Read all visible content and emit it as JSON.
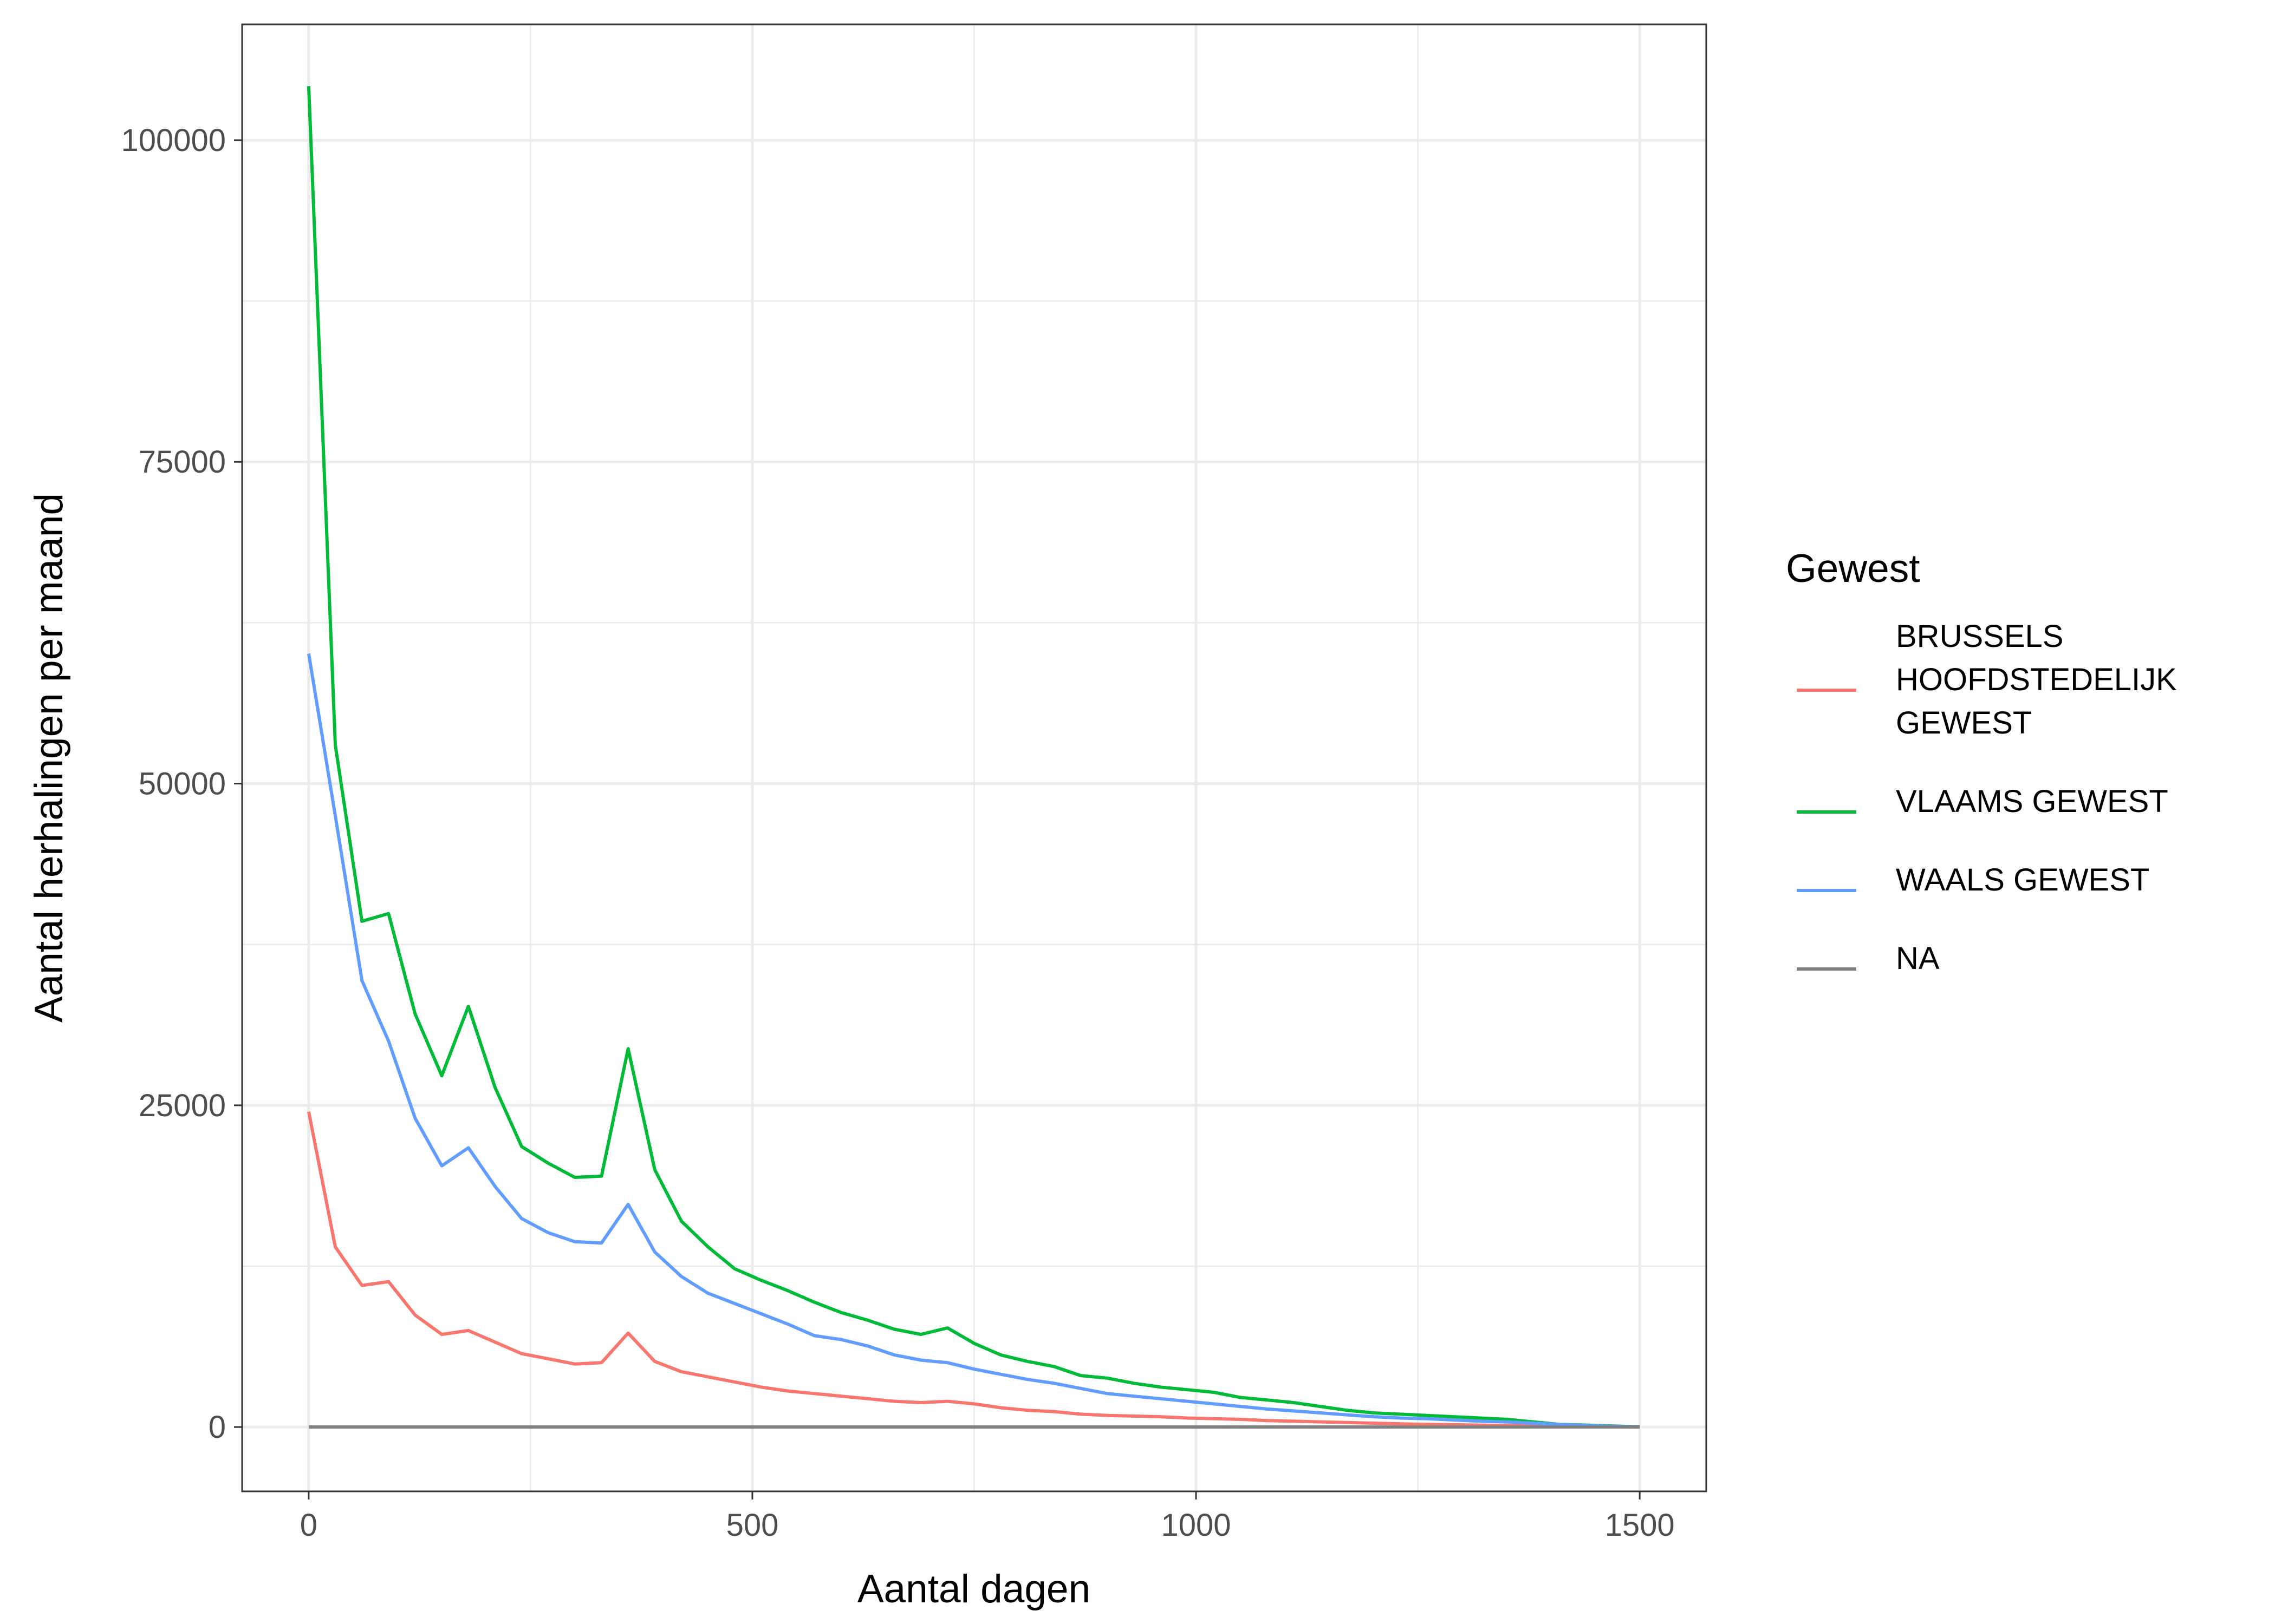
{
  "chart_data": {
    "type": "line",
    "title": "",
    "xlabel": "Aantal dagen",
    "ylabel": "Aantal herhalingen per maand",
    "xlim": [
      -75,
      1575
    ],
    "ylim": [
      -5000,
      109000
    ],
    "x_ticks": [
      0,
      500,
      1000,
      1500
    ],
    "x_tick_labels": [
      "0",
      "500",
      "1000",
      "1500"
    ],
    "x_minor_ticks": [
      250,
      750,
      1250
    ],
    "y_ticks": [
      0,
      25000,
      50000,
      75000,
      100000
    ],
    "y_tick_labels": [
      "0",
      "25000",
      "50000",
      "75000",
      "100000"
    ],
    "y_minor_ticks": [
      12500,
      37500,
      62500,
      87500
    ],
    "grid": true,
    "legend": {
      "title": "Gewest",
      "placement": "right"
    },
    "x": [
      0,
      30,
      60,
      90,
      120,
      150,
      180,
      210,
      240,
      270,
      300,
      330,
      360,
      390,
      420,
      450,
      480,
      510,
      540,
      570,
      600,
      630,
      660,
      690,
      720,
      750,
      780,
      810,
      840,
      870,
      900,
      930,
      960,
      990,
      1020,
      1050,
      1080,
      1110,
      1140,
      1170,
      1200,
      1230,
      1260,
      1290,
      1320,
      1350,
      1380,
      1410,
      1440,
      1470,
      1500
    ],
    "series": [
      {
        "name": "BRUSSELS HOOFDSTEDELIJK GEWEST",
        "label_lines": [
          "BRUSSELS",
          "HOOFDSTEDELIJK",
          "GEWEST"
        ],
        "color": "#F8766D",
        "values": [
          24500,
          14000,
          11000,
          11300,
          8700,
          7200,
          7500,
          6600,
          5700,
          5300,
          4900,
          5000,
          7300,
          5100,
          4300,
          3900,
          3500,
          3100,
          2800,
          2600,
          2400,
          2200,
          2000,
          1900,
          2000,
          1800,
          1500,
          1300,
          1200,
          1000,
          900,
          850,
          800,
          700,
          650,
          600,
          500,
          450,
          400,
          350,
          300,
          250,
          200,
          180,
          150,
          120,
          100,
          80,
          60,
          40,
          20
        ]
      },
      {
        "name": "VLAAMS GEWEST",
        "label_lines": [
          "VLAAMS GEWEST"
        ],
        "color": "#00BA38",
        "values": [
          104200,
          53000,
          39300,
          39900,
          32100,
          27300,
          32700,
          26400,
          21800,
          20500,
          19400,
          19500,
          29400,
          20000,
          16000,
          14000,
          12300,
          11400,
          10600,
          9700,
          8900,
          8300,
          7600,
          7200,
          7700,
          6500,
          5600,
          5100,
          4700,
          4000,
          3800,
          3400,
          3100,
          2900,
          2700,
          2300,
          2100,
          1900,
          1600,
          1300,
          1100,
          1000,
          900,
          800,
          700,
          600,
          400,
          200,
          150,
          80,
          20
        ]
      },
      {
        "name": "WAALS GEWEST",
        "label_lines": [
          "WAALS GEWEST"
        ],
        "color": "#619CFF",
        "values": [
          60100,
          47500,
          34700,
          30000,
          24000,
          20300,
          21700,
          18700,
          16200,
          15100,
          14400,
          14300,
          17300,
          13600,
          11700,
          10400,
          9600,
          8800,
          8000,
          7100,
          6800,
          6300,
          5600,
          5200,
          5000,
          4500,
          4100,
          3700,
          3400,
          3000,
          2600,
          2400,
          2200,
          2000,
          1800,
          1600,
          1400,
          1250,
          1100,
          950,
          800,
          700,
          650,
          550,
          450,
          400,
          300,
          200,
          120,
          60,
          20
        ]
      },
      {
        "name": "NA",
        "label_lines": [
          "NA"
        ],
        "color": "#7F7F7F",
        "values": [
          0,
          0,
          0,
          0,
          0,
          0,
          0,
          0,
          0,
          0,
          0,
          0,
          0,
          0,
          0,
          0,
          0,
          0,
          0,
          0,
          0,
          0,
          0,
          0,
          0,
          0,
          0,
          0,
          0,
          0,
          0,
          0,
          0,
          0,
          0,
          0,
          0,
          0,
          0,
          0,
          0,
          0,
          0,
          0,
          0,
          0,
          0,
          0,
          0,
          0,
          0
        ]
      }
    ]
  }
}
